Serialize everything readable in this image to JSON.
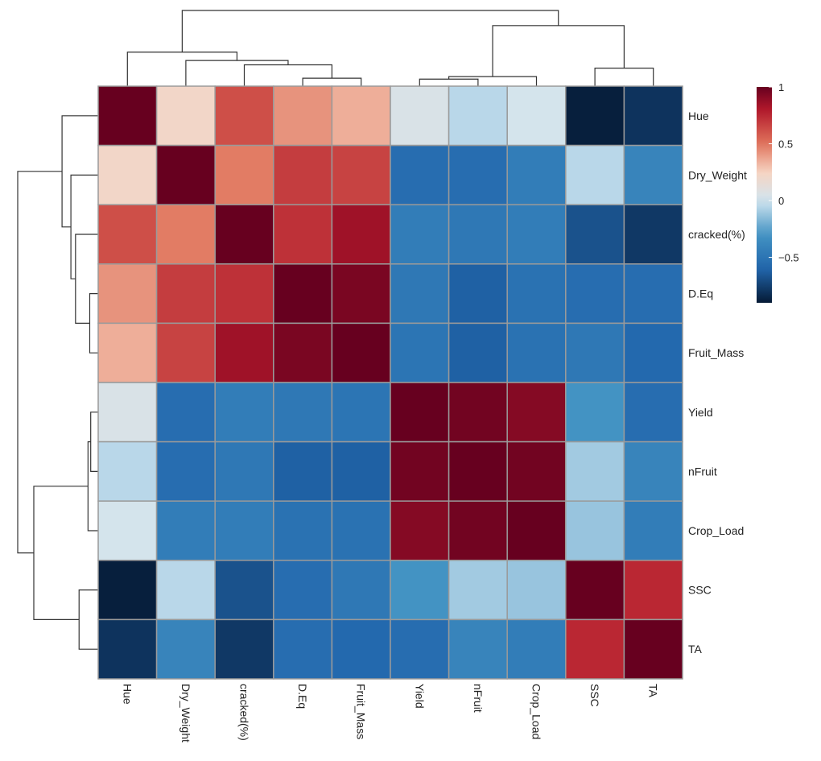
{
  "chart_data": {
    "type": "heatmap",
    "title": "",
    "row_labels": [
      "Hue",
      "Dry_Weight",
      "cracked(%)",
      "D.Eq",
      "Fruit_Mass",
      "Yield",
      "nFruit",
      "Crop_Load",
      "SSC",
      "TA"
    ],
    "col_labels": [
      "Hue",
      "Dry_Weight",
      "cracked(%)",
      "D.Eq",
      "Fruit_Mass",
      "Yield",
      "nFruit",
      "Crop_Load",
      "SSC",
      "TA"
    ],
    "values": [
      [
        1.0,
        0.22,
        0.62,
        0.42,
        0.35,
        0.05,
        -0.05,
        0.02,
        -0.88,
        -0.8
      ],
      [
        0.22,
        1.0,
        0.48,
        0.68,
        0.66,
        -0.55,
        -0.55,
        -0.45,
        -0.05,
        -0.4
      ],
      [
        0.62,
        0.48,
        1.0,
        0.72,
        0.85,
        -0.45,
        -0.48,
        -0.45,
        -0.68,
        -0.78
      ],
      [
        0.42,
        0.68,
        0.72,
        1.0,
        0.95,
        -0.48,
        -0.62,
        -0.52,
        -0.55,
        -0.55
      ],
      [
        0.35,
        0.66,
        0.85,
        0.95,
        1.0,
        -0.5,
        -0.62,
        -0.52,
        -0.48,
        -0.58
      ],
      [
        0.05,
        -0.55,
        -0.45,
        -0.48,
        -0.5,
        1.0,
        0.97,
        0.92,
        -0.3,
        -0.55
      ],
      [
        -0.05,
        -0.55,
        -0.48,
        -0.62,
        -0.62,
        0.97,
        1.0,
        0.97,
        -0.1,
        -0.4
      ],
      [
        0.02,
        -0.45,
        -0.45,
        -0.52,
        -0.52,
        0.92,
        0.97,
        1.0,
        -0.12,
        -0.45
      ],
      [
        -0.88,
        -0.05,
        -0.68,
        -0.55,
        -0.48,
        -0.3,
        -0.1,
        -0.12,
        1.0,
        0.75
      ],
      [
        -0.8,
        -0.4,
        -0.78,
        -0.55,
        -0.58,
        -0.55,
        -0.4,
        -0.45,
        0.75,
        1.0
      ]
    ],
    "colorscale": {
      "min": -0.9,
      "max": 1.0,
      "stops": [
        [
          -0.9,
          "#051a35"
        ],
        [
          -0.6,
          "#2166ac"
        ],
        [
          -0.3,
          "#4393c3"
        ],
        [
          0.0,
          "#d1e5f0"
        ],
        [
          0.25,
          "#f7d4c2"
        ],
        [
          0.5,
          "#e0745c"
        ],
        [
          0.8,
          "#b2182b"
        ],
        [
          1.0,
          "#67001f"
        ]
      ]
    },
    "legend": {
      "position": "right",
      "ticks": [
        1,
        0.5,
        0,
        -0.5
      ],
      "tick_labels": [
        "1",
        "0.5",
        "0",
        "−0.5"
      ]
    },
    "dendrogram": {
      "leaf_order": [
        "Hue",
        "Dry_Weight",
        "cracked(%)",
        "D.Eq",
        "Fruit_Mass",
        "Yield",
        "nFruit",
        "Crop_Load",
        "SSC",
        "TA"
      ],
      "merges": [
        [
          3,
          4,
          0.05
        ],
        [
          5,
          6,
          0.04
        ],
        [
          -2,
          7,
          0.07
        ],
        [
          8,
          9,
          0.22
        ],
        [
          2,
          -1,
          0.3
        ],
        [
          1,
          -5,
          0.42
        ],
        [
          0,
          -6,
          0.7
        ],
        [
          -3,
          -4,
          2.0
        ],
        [
          -7,
          -8,
          3.0
        ]
      ]
    }
  }
}
